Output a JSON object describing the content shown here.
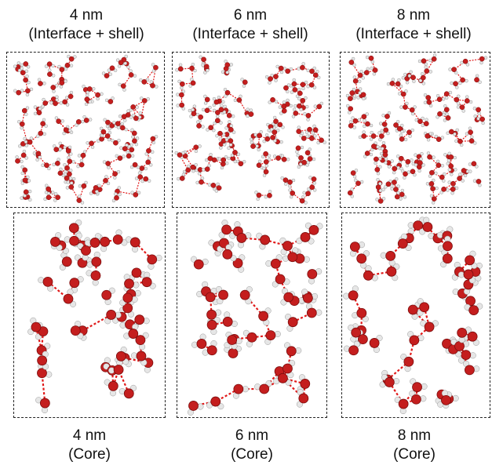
{
  "figure": {
    "top_captions": [
      {
        "size": "4 nm",
        "region": "(Interface + shell)"
      },
      {
        "size": "6 nm",
        "region": "(Interface + shell)"
      },
      {
        "size": "8 nm",
        "region": "(Interface + shell)"
      }
    ],
    "bottom_captions": [
      {
        "size": "4 nm",
        "region": "(Core)"
      },
      {
        "size": "6 nm",
        "region": "(Core)"
      },
      {
        "size": "8 nm",
        "region": "(Core)"
      }
    ],
    "colors": {
      "oxygen": "#c41e1e",
      "oxygen_dark": "#7a0d0d",
      "hydrogen": "#e6e6e6",
      "hbond": "#e01818",
      "covalent": "#9a9a9a"
    }
  }
}
